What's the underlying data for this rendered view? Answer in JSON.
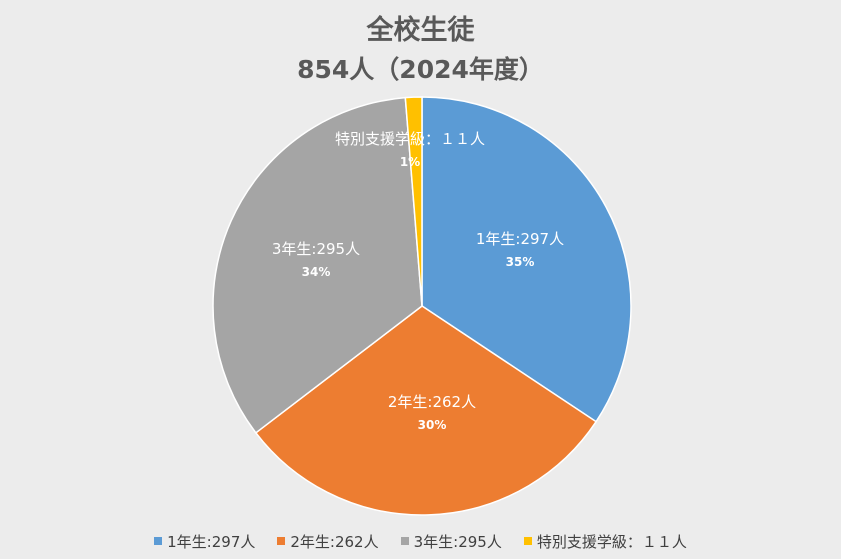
{
  "chart_data": {
    "type": "pie",
    "title": "全校生徒",
    "subtitle": "854人（2024年度）",
    "categories": [
      "1年生:297人",
      "2年生:262人",
      "3年生:295人",
      "特別支援学級：１１人"
    ],
    "values": [
      297,
      262,
      295,
      11
    ],
    "percent_labels": [
      "35%",
      "30%",
      "34%",
      "1%"
    ],
    "colors": [
      "#5b9bd5",
      "#ed7d31",
      "#a5a5a5",
      "#ffc000"
    ],
    "legend": "bottom",
    "start": "12 o'clock, clockwise"
  }
}
